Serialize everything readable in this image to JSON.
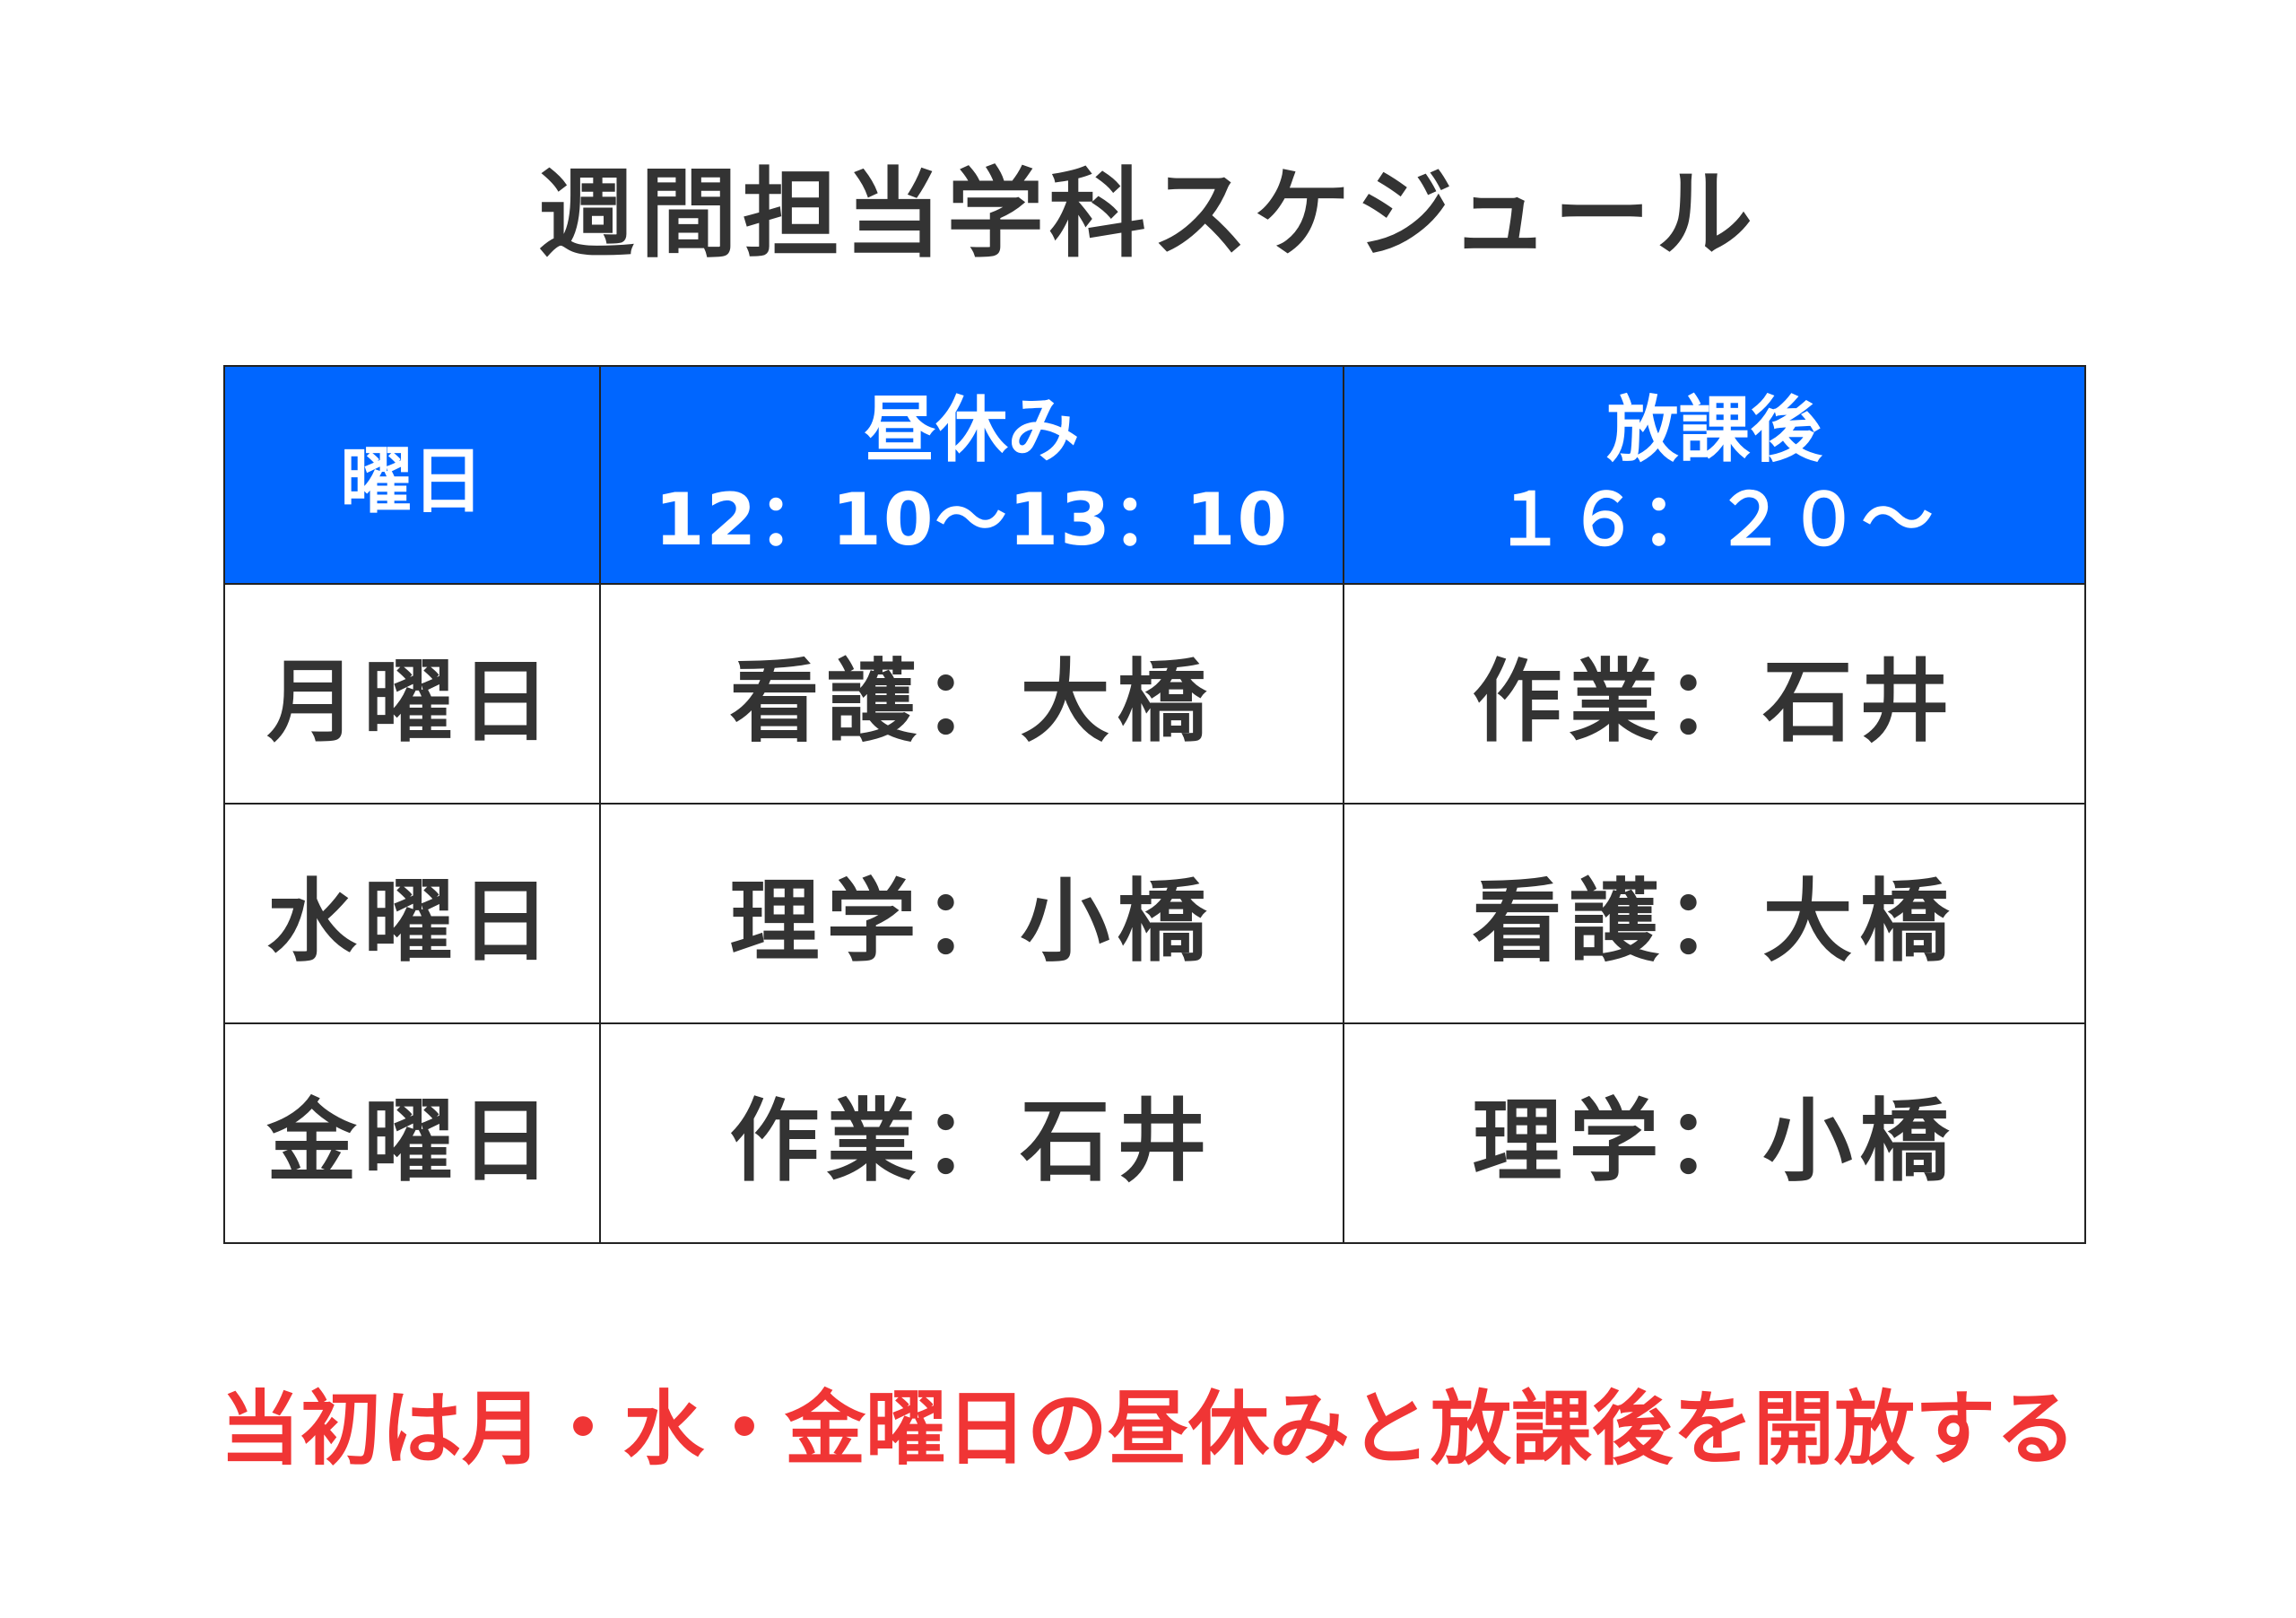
{
  "title": "週間担当学科スケジュール",
  "colors": {
    "header_bg": "#0066FF",
    "header_text": "#FFFFFF",
    "body_text": "#333333",
    "note_text": "#F03535"
  },
  "table": {
    "headers": [
      {
        "line1": "曜日",
        "line2": ""
      },
      {
        "line1": "昼休み",
        "line2": "12：10～13：10"
      },
      {
        "line1": "放課後",
        "line2": "１６：２０～"
      }
    ],
    "rows": [
      {
        "day": "月曜日",
        "lunch": "看護：大橋",
        "after": "作業：石井"
      },
      {
        "day": "水曜日",
        "lunch": "理学：小橋",
        "after": "看護：大橋"
      },
      {
        "day": "金曜日",
        "lunch": "作業：石井",
        "after": "理学：小橋"
      }
    ]
  },
  "note": "当初は月・水・金曜日の昼休みと放課後を開放する"
}
